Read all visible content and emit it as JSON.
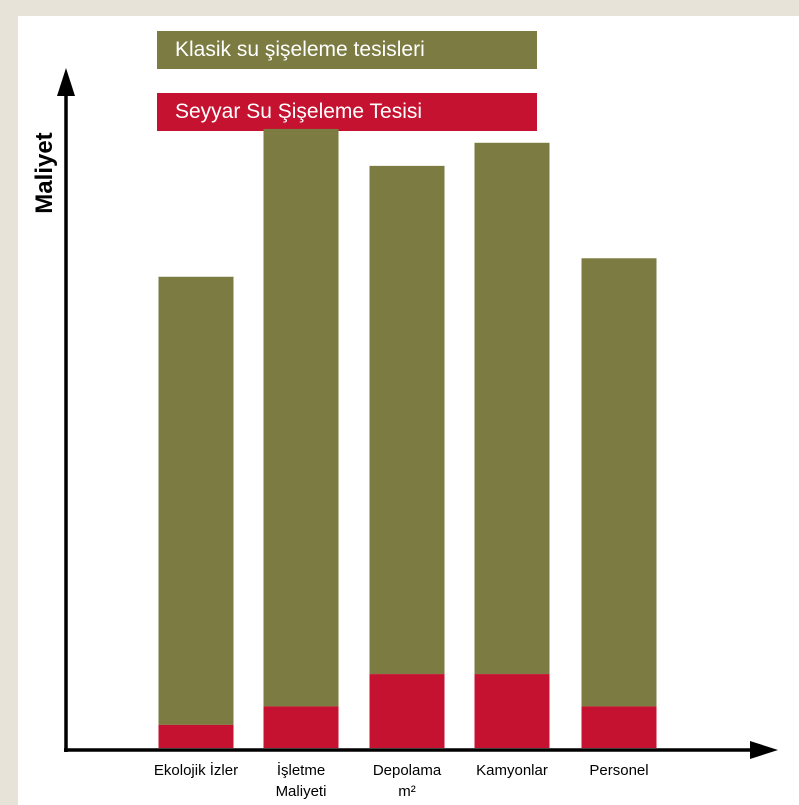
{
  "chart_data": {
    "type": "bar",
    "stacked": true,
    "categories": [
      "Ekolojik İzler",
      "İşletme Maliyeti",
      "Depolama m²",
      "Kamyonlar",
      "Personel"
    ],
    "category_lines": [
      [
        "Ekolojik İzler"
      ],
      [
        "İşletme",
        "Maliyeti"
      ],
      [
        "Depolama",
        "m²"
      ],
      [
        "Kamyonlar"
      ],
      [
        "Personel"
      ]
    ],
    "series": [
      {
        "name": "Seyyar Su Şişeleme Tesisi",
        "values": [
          5,
          9,
          16,
          16,
          9
        ]
      },
      {
        "name": "Klasik su şişeleme tesisleri",
        "values": [
          97,
          125,
          110,
          115,
          97
        ]
      }
    ],
    "ylabel": "Maliyet",
    "xlabel": "",
    "ylim": [
      0,
      150
    ],
    "grid": false,
    "legend_position": "top",
    "colors": {
      "classic": "#7b7b42",
      "mobile": "#c41230",
      "axis": "#000000",
      "background": "#e8e3d8"
    }
  }
}
